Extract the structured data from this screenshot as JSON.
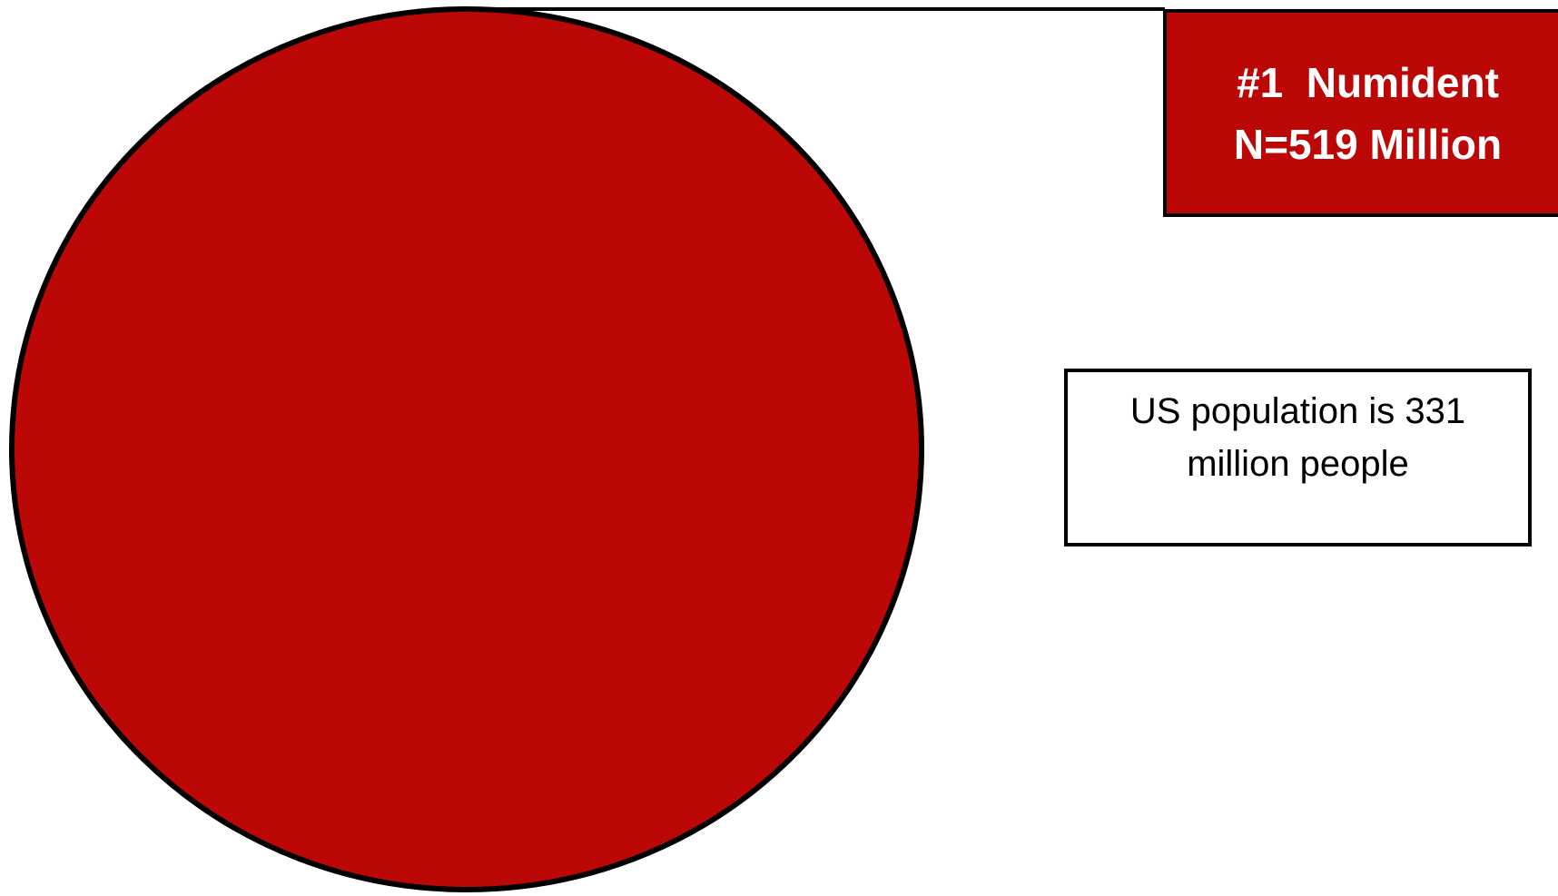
{
  "colors": {
    "fill": "#BC0707",
    "outline": "#000000",
    "background": "#FFFFFF",
    "callout_text": "#FFFFFF"
  },
  "callout": {
    "line1": "#1  Numident",
    "line2": "N=519 Million"
  },
  "note": {
    "text": "US population is 331 million people"
  }
}
